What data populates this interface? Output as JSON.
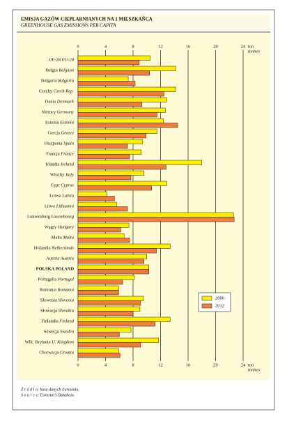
{
  "chart_data": {
    "type": "hbar",
    "title": "EMISJA GAZÓW CIEPLARNIANYCH NA 1 MIESZKAŃCA",
    "subtitle": "GREENHOUSE GAS EMISSIONS PER CAPITA",
    "x_unit": "ton",
    "x_unit_en": "tonnes",
    "categories": [
      "UE-28",
      "Belgia",
      "Bułgaria",
      "Czechy",
      "Dania",
      "Niemcy",
      "Estonia",
      "Grecja",
      "Hiszpania",
      "Francja",
      "Irlandia",
      "Włochy",
      "Cypr",
      "Łotwa",
      "Litwa",
      "Luksemburg",
      "Węgry",
      "Malta",
      "Holandia",
      "Austria",
      "POLSKA",
      "Portugalia",
      "Rumunia",
      "Słowenia",
      "Słowacja",
      "Finlandia",
      "Szwecja",
      "Wlk. Brytania",
      "Chorwacja"
    ],
    "categories_en": [
      "EU-28",
      "Belgium",
      "Bulgaria",
      "Czech Rep.",
      "Denmark",
      "Germany",
      "Estonia",
      "Greece",
      "Spain",
      "France",
      "Ireland",
      "Italy",
      "Cyprus",
      "Latvia",
      "Lithuania",
      "Luxembourg",
      "Hungary",
      "Malta",
      "Netherlands",
      "Austria",
      "POLAND",
      "Portugal",
      "Romania",
      "Slovenia",
      "Slovakia",
      "Finland",
      "Sweden",
      "U. Kingdom",
      "Croatia"
    ],
    "highlight": "POLSKA",
    "series": [
      {
        "name": "2000",
        "color": "#ffee00",
        "values": [
          10.5,
          14.2,
          7.3,
          14.2,
          12.9,
          12.7,
          12.4,
          11.5,
          9.4,
          9.2,
          18.0,
          9.6,
          12.9,
          4.2,
          5.6,
          22.6,
          7.4,
          6.7,
          13.4,
          10.0,
          10.3,
          8.2,
          5.9,
          9.5,
          9.0,
          13.4,
          7.7,
          11.7,
          5.9
        ]
      },
      {
        "name": "2012",
        "color": "#ee7d3a",
        "values": [
          8.9,
          10.4,
          8.3,
          12.5,
          9.3,
          11.5,
          14.5,
          9.9,
          7.2,
          7.5,
          12.8,
          7.7,
          10.7,
          5.3,
          7.2,
          22.7,
          6.2,
          7.5,
          11.4,
          9.6,
          10.3,
          6.5,
          5.9,
          9.1,
          8.0,
          11.2,
          6.0,
          9.1,
          6.1
        ]
      }
    ],
    "xlim": [
      0,
      24
    ],
    "xticks": [
      0,
      4,
      8,
      12,
      16,
      20,
      24
    ],
    "grid": true,
    "legend": "lower-right",
    "source": "Ź r ó d ł o: baza danych Eurostatu.",
    "source_en": "S o u r c e: Eurostat's Database."
  }
}
